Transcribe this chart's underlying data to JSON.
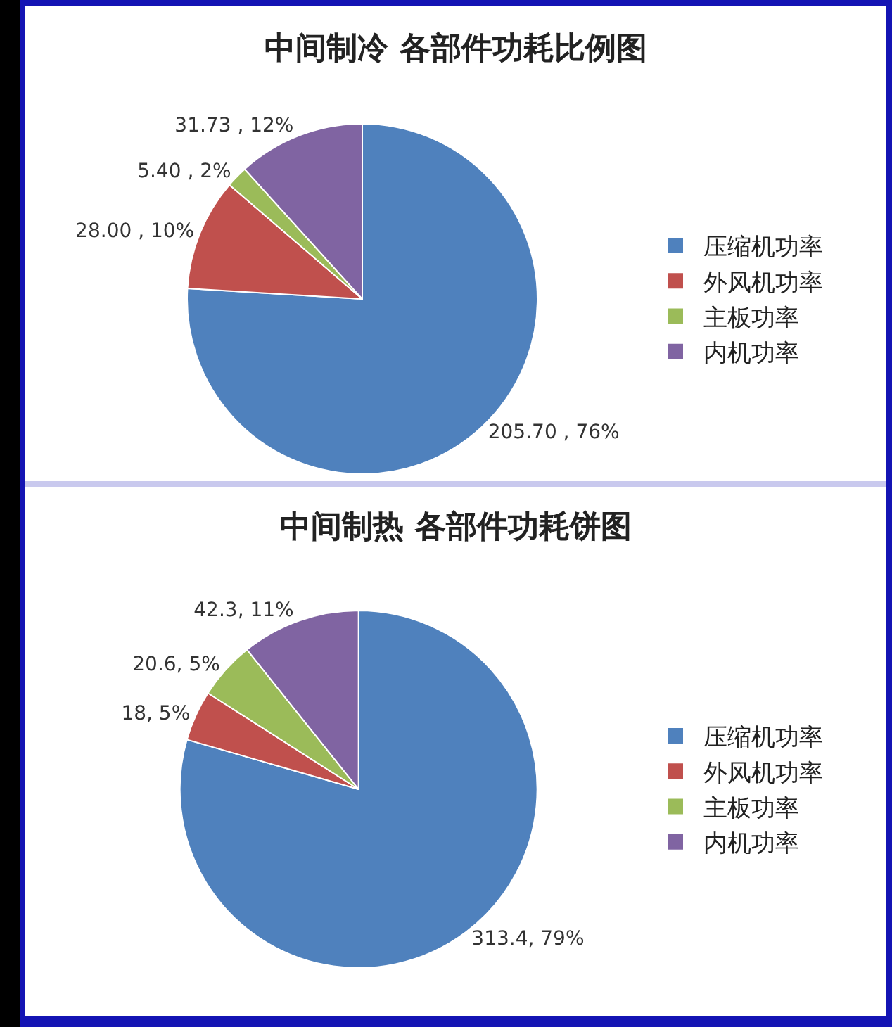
{
  "chart_data": [
    {
      "type": "pie",
      "title": "中间制冷 各部件功耗比例图",
      "categories": [
        "压缩机功率",
        "外风机功率",
        "主板功率",
        "内机功率"
      ],
      "values": [
        205.7,
        28.0,
        5.4,
        31.73
      ],
      "value_labels": [
        "205.70 , 76%",
        "28.00 , 10%",
        "5.40 , 2%",
        "31.73 , 12%"
      ],
      "colors": [
        "#4f81bd",
        "#c0504d",
        "#9bbb59",
        "#8064a2"
      ],
      "legend": "right"
    },
    {
      "type": "pie",
      "title": "中间制热 各部件功耗饼图",
      "categories": [
        "压缩机功率",
        "外风机功率",
        "主板功率",
        "内机功率"
      ],
      "values": [
        313.4,
        18,
        20.6,
        42.3
      ],
      "value_labels": [
        "313.4, 79%",
        "18, 5%",
        "20.6, 5%",
        "42.3, 11%"
      ],
      "colors": [
        "#4f81bd",
        "#c0504d",
        "#9bbb59",
        "#8064a2"
      ],
      "legend": "right"
    }
  ]
}
